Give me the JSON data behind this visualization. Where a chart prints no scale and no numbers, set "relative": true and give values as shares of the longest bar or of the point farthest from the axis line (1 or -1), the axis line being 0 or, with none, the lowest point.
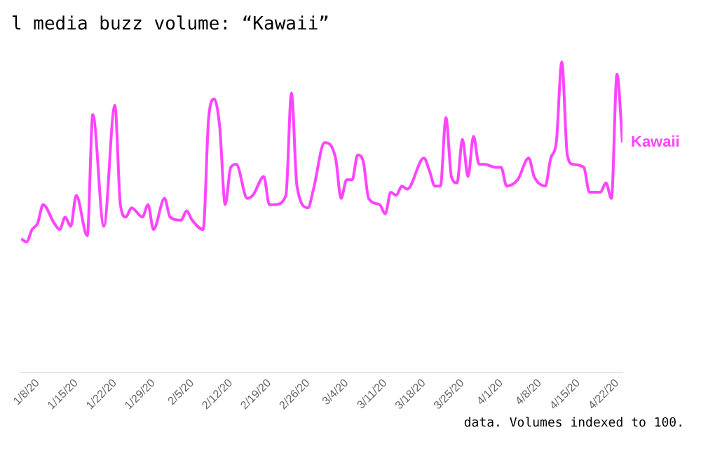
{
  "chart_data": {
    "type": "line",
    "title": "l media buzz volume: “Kawaii”",
    "annotations": [
      "data. Volumes indexed to 100."
    ],
    "relative": true,
    "marker": "none",
    "line_style": "solid",
    "tick_labels": "x",
    "x": [
      "--01-05",
      "--01-06",
      "--01-07",
      "--01-08",
      "--01-09",
      "--01-11",
      "--01-12",
      "--01-13",
      "--01-14",
      "--01-15",
      "--01-17",
      "--01-18",
      "--01-20",
      "--01-22",
      "--01-23",
      "--01-24",
      "--01-25",
      "--01-27",
      "--01-28",
      "--01-29",
      "--01-31",
      "--02-01",
      "--02-03",
      "--02-04",
      "--02-05",
      "--02-07",
      "--02-08",
      "--02-09",
      "--02-10",
      "--02-11",
      "--02-12",
      "--02-13",
      "--02-15",
      "--02-16",
      "--02-18",
      "--02-19",
      "--02-20",
      "--02-22",
      "--02-23",
      "--02-24",
      "--02-26",
      "--02-27",
      "--02-29",
      "--03-02",
      "--03-03",
      "--03-04",
      "--03-05",
      "--03-06",
      "--03-07",
      "--03-08",
      "--03-10",
      "--03-11",
      "--03-12",
      "--03-13",
      "--03-14",
      "--03-15",
      "--03-18",
      "--03-19",
      "--03-20",
      "--03-21",
      "--03-22",
      "--03-23",
      "--03-24",
      "--03-25",
      "--03-26",
      "--03-27",
      "--03-28",
      "--03-29",
      "--03-31",
      "--04-01",
      "--04-02",
      "--04-04",
      "--04-06",
      "--04-07",
      "--04-09",
      "--04-10",
      "--04-11",
      "--04-12",
      "--04-13",
      "--04-14",
      "--04-16",
      "--04-17",
      "--04-19",
      "--04-20",
      "--04-21",
      "--04-22",
      "--04-23"
    ],
    "series": [
      {
        "name": "Kawaii",
        "color": "#ff44ff",
        "values": [
          0.43,
          0.42,
          0.46,
          0.48,
          0.54,
          0.48,
          0.46,
          0.5,
          0.47,
          0.57,
          0.44,
          0.83,
          0.47,
          0.86,
          0.54,
          0.5,
          0.53,
          0.5,
          0.54,
          0.46,
          0.56,
          0.5,
          0.49,
          0.52,
          0.49,
          0.46,
          0.82,
          0.88,
          0.79,
          0.54,
          0.66,
          0.67,
          0.56,
          0.57,
          0.63,
          0.54,
          0.54,
          0.57,
          0.9,
          0.6,
          0.53,
          0.59,
          0.74,
          0.69,
          0.56,
          0.62,
          0.62,
          0.7,
          0.68,
          0.56,
          0.54,
          0.51,
          0.58,
          0.57,
          0.6,
          0.59,
          0.69,
          0.65,
          0.6,
          0.6,
          0.82,
          0.63,
          0.61,
          0.75,
          0.63,
          0.76,
          0.67,
          0.67,
          0.66,
          0.66,
          0.6,
          0.62,
          0.69,
          0.63,
          0.6,
          0.69,
          0.74,
          1.0,
          0.7,
          0.67,
          0.66,
          0.58,
          0.58,
          0.61,
          0.56,
          0.96,
          0.74
        ]
      }
    ],
    "xlim": [
      "--01-05",
      "--04-23"
    ],
    "xticks": [
      {
        "value": "--01-08",
        "label": "1/8/20"
      },
      {
        "value": "--01-15",
        "label": "1/15/20"
      },
      {
        "value": "--01-22",
        "label": "1/22/20"
      },
      {
        "value": "--01-29",
        "label": "1/29/20"
      },
      {
        "value": "--02-05",
        "label": "2/5/20"
      },
      {
        "value": "--02-12",
        "label": "2/12/20"
      },
      {
        "value": "--02-19",
        "label": "2/19/20"
      },
      {
        "value": "--02-26",
        "label": "2/26/20"
      },
      {
        "value": "--03-04",
        "label": "3/4/20"
      },
      {
        "value": "--03-11",
        "label": "3/11/20"
      },
      {
        "value": "--03-18",
        "label": "3/18/20"
      },
      {
        "value": "--03-25",
        "label": "3/25/20"
      },
      {
        "value": "--04-01",
        "label": "4/1/20"
      },
      {
        "value": "--04-08",
        "label": "4/8/20"
      },
      {
        "value": "--04-15",
        "label": "4/15/20"
      },
      {
        "value": "--04-22",
        "label": "4/22/20"
      }
    ]
  }
}
